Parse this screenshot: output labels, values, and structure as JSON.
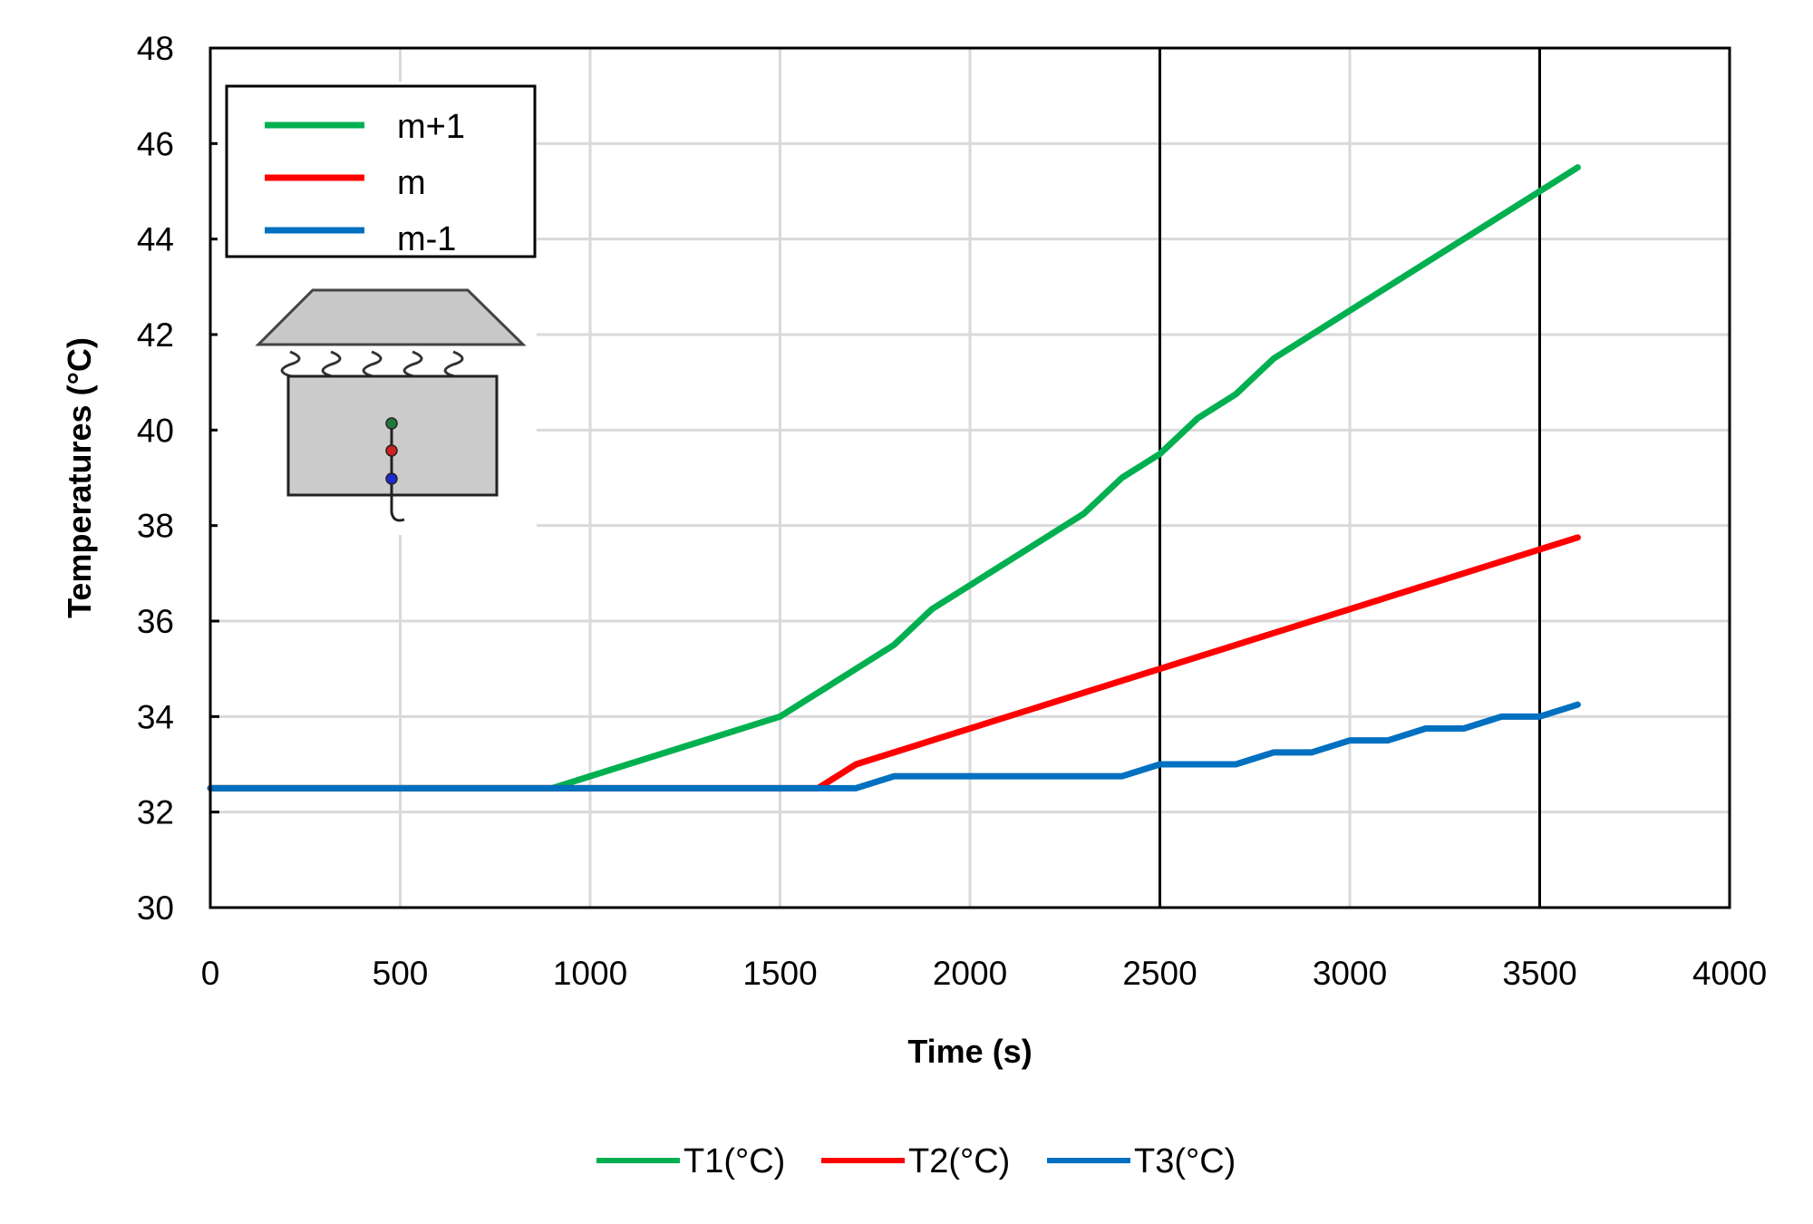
{
  "chart_data": {
    "type": "line",
    "title": "",
    "xlabel": "Time (s)",
    "ylabel": "Temperatures (°C)",
    "xlim": [
      0,
      4000
    ],
    "ylim": [
      30,
      48
    ],
    "xticks": [
      0,
      500,
      1000,
      1500,
      2000,
      2500,
      3000,
      3500,
      4000
    ],
    "yticks": [
      30,
      32,
      34,
      36,
      38,
      40,
      42,
      44,
      46,
      48
    ],
    "grid": true,
    "reference_lines_x": [
      2500,
      3500
    ],
    "legend_position": "bottom",
    "series": [
      {
        "name": "T1(°C)",
        "color": "#00b050",
        "x": [
          0,
          900,
          1500,
          1800,
          1900,
          2300,
          2400,
          2500,
          2600,
          2700,
          2800,
          3600
        ],
        "y": [
          32.5,
          32.5,
          34,
          35.5,
          36.25,
          38.25,
          39,
          39.5,
          40.25,
          40.75,
          41.5,
          45.5
        ]
      },
      {
        "name": "T2(°C)",
        "color": "#ff0000",
        "x": [
          0,
          1600,
          1700,
          3600
        ],
        "y": [
          32.5,
          32.5,
          33,
          37.75
        ]
      },
      {
        "name": "T3(°C)",
        "color": "#0070c0",
        "x": [
          0,
          1700,
          1800,
          2400,
          2500,
          2700,
          2800,
          2900,
          3000,
          3100,
          3200,
          3300,
          3400,
          3500,
          3600
        ],
        "y": [
          32.5,
          32.5,
          32.75,
          32.75,
          33,
          33,
          33.25,
          33.25,
          33.5,
          33.5,
          33.75,
          33.75,
          34,
          34,
          34.25
        ]
      }
    ],
    "inset_legend": [
      {
        "label": "m+1",
        "color": "#00b050"
      },
      {
        "label": "m",
        "color": "#ff0000"
      },
      {
        "label": "m-1",
        "color": "#0070c0"
      }
    ]
  }
}
